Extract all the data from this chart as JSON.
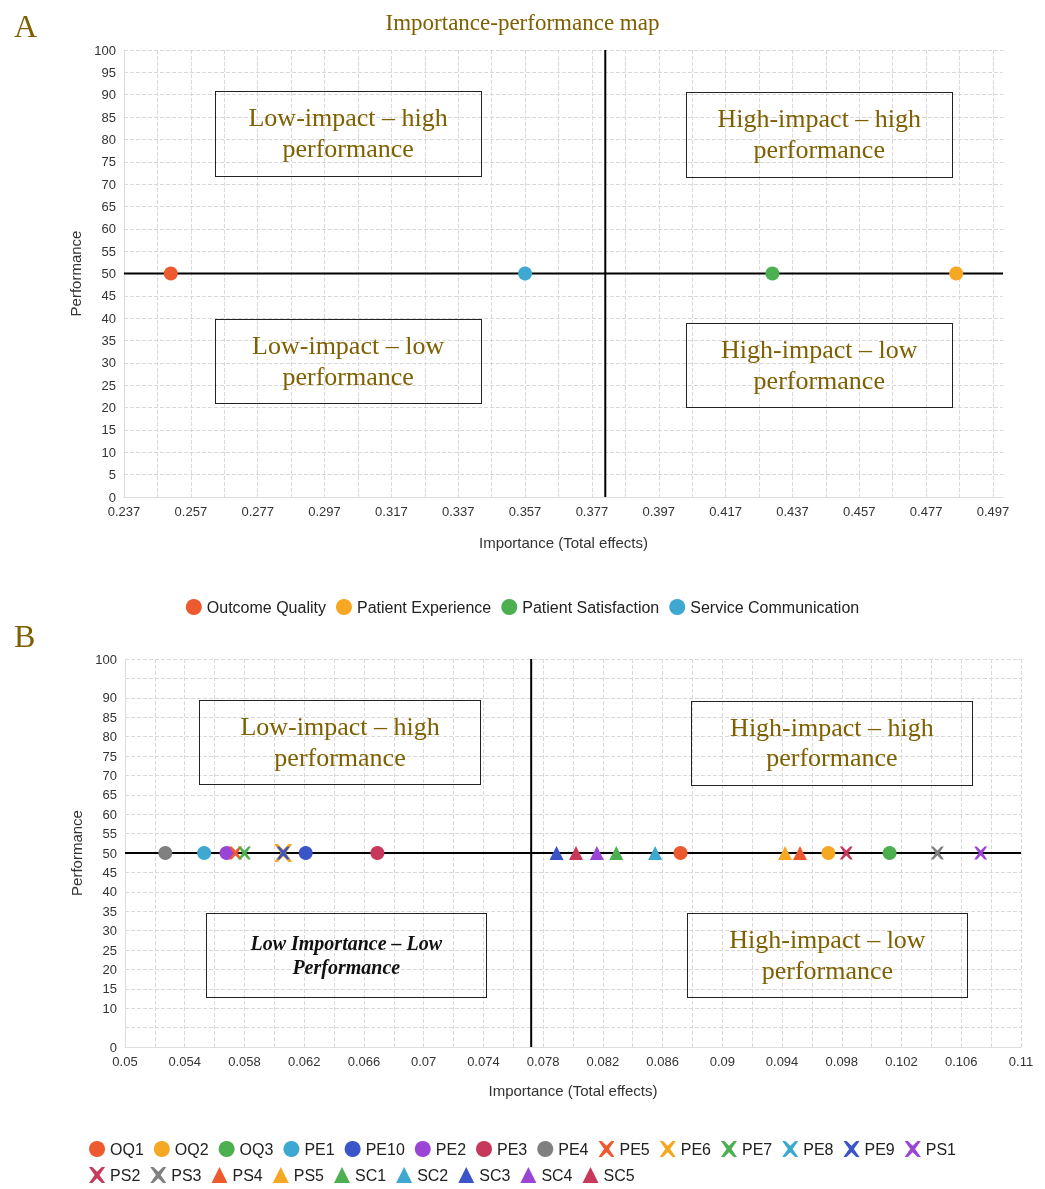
{
  "chart_data": [
    {
      "type": "scatter",
      "title": "Importance-performance map",
      "xlabel": "Importance (Total effects)",
      "ylabel": "Performance",
      "annotations": [
        "A",
        "Low-impact – high performance",
        "High-impact – high performance",
        "Low-impact – low performance",
        "High-impact – low performance"
      ],
      "xlim": [
        0.237,
        0.5
      ],
      "xticks": [
        0.237,
        {
          "value": 0.247,
          "label": null
        },
        0.257,
        {
          "value": 0.267,
          "label": null
        },
        0.277,
        {
          "value": 0.287,
          "label": null
        },
        0.297,
        {
          "value": 0.307,
          "label": null
        },
        0.317,
        {
          "value": 0.327,
          "label": null
        },
        0.337,
        {
          "value": 0.347,
          "label": null
        },
        0.357,
        {
          "value": 0.367,
          "label": null
        },
        0.377,
        {
          "value": 0.387,
          "label": null
        },
        0.397,
        {
          "value": 0.407,
          "label": null
        },
        0.417,
        {
          "value": 0.427,
          "label": null
        },
        0.437,
        {
          "value": 0.447,
          "label": null
        },
        0.457,
        {
          "value": 0.467,
          "label": null
        },
        0.477,
        {
          "value": 0.487,
          "label": null
        },
        0.497
      ],
      "ylim": [
        0,
        100
      ],
      "yticks": [
        0,
        5,
        10,
        15,
        20,
        25,
        30,
        35,
        40,
        45,
        50,
        55,
        60,
        65,
        70,
        75,
        80,
        85,
        90,
        95,
        100
      ],
      "grid": true,
      "legend": "bottom",
      "marker": "circle",
      "ref_lines": [
        {
          "axis": "x",
          "value": 0.381,
          "color": "#000000"
        },
        {
          "axis": "y",
          "value": 50,
          "color": "#000000"
        }
      ],
      "series": [
        {
          "name": "Outcome Quality",
          "color": "#ee5a2f",
          "x": [
            0.251
          ],
          "values": [
            50
          ]
        },
        {
          "name": "Patient Experience",
          "color": "#f7a823",
          "x": [
            0.486
          ],
          "values": [
            50
          ]
        },
        {
          "name": "Patient Satisfaction",
          "color": "#4caf50",
          "x": [
            0.431
          ],
          "values": [
            50
          ]
        },
        {
          "name": "Service Communication",
          "color": "#3ea8d0",
          "x": [
            0.357
          ],
          "values": [
            50
          ]
        }
      ]
    },
    {
      "type": "scatter",
      "xlabel": "Importance (Total effects)",
      "ylabel": "Performance",
      "annotations": [
        "B",
        "Low-impact – high performance",
        "High-impact – high performance",
        "Low Importance – Low Performance",
        "High-impact – low performance"
      ],
      "xlim": [
        0.05,
        0.11
      ],
      "xticks": [
        0.05,
        {
          "value": 0.052,
          "label": null
        },
        0.054,
        {
          "value": 0.056,
          "label": null
        },
        0.058,
        {
          "value": 0.06,
          "label": null
        },
        0.062,
        {
          "value": 0.064,
          "label": null
        },
        0.066,
        {
          "value": 0.068,
          "label": null
        },
        0.07,
        {
          "value": 0.072,
          "label": null
        },
        0.074,
        {
          "value": 0.076,
          "label": null
        },
        0.078,
        {
          "value": 0.08,
          "label": null
        },
        0.082,
        {
          "value": 0.084,
          "label": null
        },
        0.086,
        {
          "value": 0.088,
          "label": null
        },
        0.09,
        {
          "value": 0.092,
          "label": null
        },
        0.094,
        {
          "value": 0.096,
          "label": null
        },
        0.098,
        {
          "value": 0.1,
          "label": null
        },
        0.102,
        {
          "value": 0.104,
          "label": null
        },
        0.106,
        {
          "value": 0.108,
          "label": null
        },
        0.11
      ],
      "ylim": [
        0,
        100
      ],
      "yticks": [
        0,
        {
          "value": 5,
          "label": null
        },
        10,
        15,
        20,
        25,
        30,
        35,
        40,
        45,
        50,
        55,
        60,
        65,
        70,
        75,
        80,
        85,
        90,
        {
          "value": 95,
          "label": null
        },
        100
      ],
      "grid": true,
      "legend": "bottom",
      "ref_lines": [
        {
          "axis": "x",
          "value": 0.0772,
          "color": "#000000"
        },
        {
          "axis": "y",
          "value": 50,
          "color": "#000000"
        }
      ],
      "series": [
        {
          "name": "OQ1",
          "color": "#ee5a2f",
          "marker": "circle",
          "x": [
            0.0872
          ],
          "values": [
            50
          ]
        },
        {
          "name": "OQ2",
          "color": "#f7a823",
          "marker": "circle",
          "x": [
            0.0971
          ],
          "values": [
            50
          ]
        },
        {
          "name": "OQ3",
          "color": "#4caf50",
          "marker": "circle",
          "x": [
            0.1012
          ],
          "values": [
            50
          ]
        },
        {
          "name": "PE1",
          "color": "#3ea8d0",
          "marker": "circle",
          "x": [
            0.0553
          ],
          "values": [
            50
          ]
        },
        {
          "name": "PE10",
          "color": "#3b55c9",
          "marker": "circle",
          "x": [
            0.0621
          ],
          "values": [
            50
          ]
        },
        {
          "name": "PE2",
          "color": "#9b45d6",
          "marker": "circle",
          "x": [
            0.0568
          ],
          "values": [
            50
          ]
        },
        {
          "name": "PE3",
          "color": "#c8385a",
          "marker": "circle",
          "x": [
            0.0669
          ],
          "values": [
            50
          ]
        },
        {
          "name": "PE4",
          "color": "#808080",
          "marker": "circle",
          "x": [
            0.0527
          ],
          "values": [
            50
          ]
        },
        {
          "name": "PE5",
          "color": "#ee5a2f",
          "marker": "cross",
          "x": [
            0.0574
          ],
          "values": [
            50
          ]
        },
        {
          "name": "PE6",
          "color": "#f7a823",
          "marker": "cross",
          "x": [
            0.0606
          ],
          "values": [
            50
          ]
        },
        {
          "name": "PE7",
          "color": "#4caf50",
          "marker": "cross",
          "x": [
            0.058
          ],
          "values": [
            50
          ]
        },
        {
          "name": "PE8",
          "color": "#3ea8d0",
          "marker": "cross",
          "x": [
            null
          ],
          "values": [
            null
          ]
        },
        {
          "name": "PE9",
          "color": "#3b55c9",
          "marker": "cross",
          "x": [
            0.0606
          ],
          "values": [
            50
          ]
        },
        {
          "name": "PS1",
          "color": "#9b45d6",
          "marker": "cross",
          "x": [
            0.1073
          ],
          "values": [
            50
          ]
        },
        {
          "name": "PS2",
          "color": "#c8385a",
          "marker": "cross",
          "x": [
            0.0983
          ],
          "values": [
            50
          ]
        },
        {
          "name": "PS3",
          "color": "#808080",
          "marker": "cross",
          "x": [
            0.1044
          ],
          "values": [
            50
          ]
        },
        {
          "name": "PS4",
          "color": "#ee5a2f",
          "marker": "triangle",
          "x": [
            0.0952
          ],
          "values": [
            50
          ]
        },
        {
          "name": "PS5",
          "color": "#f7a823",
          "marker": "triangle",
          "x": [
            0.0942
          ],
          "values": [
            50
          ]
        },
        {
          "name": "SC1",
          "color": "#4caf50",
          "marker": "triangle",
          "x": [
            0.0829
          ],
          "values": [
            50
          ]
        },
        {
          "name": "SC2",
          "color": "#3ea8d0",
          "marker": "triangle",
          "x": [
            0.0855
          ],
          "values": [
            50
          ]
        },
        {
          "name": "SC3",
          "color": "#3b55c9",
          "marker": "triangle",
          "x": [
            0.0789
          ],
          "values": [
            50
          ]
        },
        {
          "name": "SC4",
          "color": "#9b45d6",
          "marker": "triangle",
          "x": [
            0.0816
          ],
          "values": [
            50
          ]
        },
        {
          "name": "SC5",
          "color": "#c8385a",
          "marker": "triangle",
          "x": [
            0.0802
          ],
          "values": [
            50
          ]
        }
      ]
    }
  ]
}
